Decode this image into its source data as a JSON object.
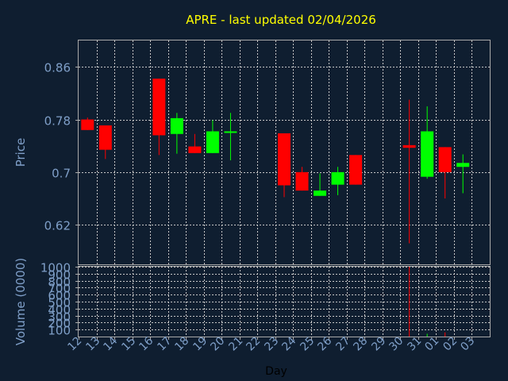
{
  "chart_data": [
    {
      "type": "candlestick",
      "title": "APRE - last updated 02/04/2026",
      "ylabel": "Price",
      "xlabel": "Day",
      "categories": [
        "12",
        "13",
        "14",
        "15",
        "16",
        "17",
        "18",
        "19",
        "20",
        "21",
        "22",
        "23",
        "24",
        "25",
        "26",
        "27",
        "28",
        "29",
        "30",
        "31",
        "01",
        "02",
        "03"
      ],
      "ylim": [
        0.56,
        0.9
      ],
      "yticks": [
        0.62,
        0.7,
        0.78,
        0.86
      ],
      "yticklabels": [
        "0.62",
        "0.7",
        "0.78",
        "0.86"
      ],
      "grid": true,
      "candles": [
        {
          "x": "12",
          "open": 0.78,
          "close": 0.764,
          "high": 0.783,
          "low": 0.764
        },
        {
          "x": "13",
          "open": 0.771,
          "close": 0.734,
          "high": 0.771,
          "low": 0.72
        },
        {
          "x": "16",
          "open": 0.842,
          "close": 0.756,
          "high": 0.842,
          "low": 0.726
        },
        {
          "x": "17",
          "open": 0.758,
          "close": 0.782,
          "high": 0.79,
          "low": 0.728
        },
        {
          "x": "18",
          "open": 0.739,
          "close": 0.729,
          "high": 0.758,
          "low": 0.729
        },
        {
          "x": "19",
          "open": 0.729,
          "close": 0.762,
          "high": 0.779,
          "low": 0.729
        },
        {
          "x": "20",
          "open": 0.762,
          "close": 0.762,
          "high": 0.79,
          "low": 0.718
        },
        {
          "x": "23",
          "open": 0.759,
          "close": 0.68,
          "high": 0.759,
          "low": 0.662
        },
        {
          "x": "24",
          "open": 0.7,
          "close": 0.672,
          "high": 0.708,
          "low": 0.672
        },
        {
          "x": "25",
          "open": 0.664,
          "close": 0.672,
          "high": 0.698,
          "low": 0.664
        },
        {
          "x": "26",
          "open": 0.681,
          "close": 0.7,
          "high": 0.708,
          "low": 0.665
        },
        {
          "x": "27",
          "open": 0.726,
          "close": 0.681,
          "high": 0.726,
          "low": 0.681
        },
        {
          "x": "30",
          "open": 0.741,
          "close": 0.737,
          "high": 0.81,
          "low": 0.592
        },
        {
          "x": "31",
          "open": 0.693,
          "close": 0.762,
          "high": 0.8,
          "low": 0.69
        },
        {
          "x": "01",
          "open": 0.738,
          "close": 0.7,
          "high": 0.738,
          "low": 0.66
        },
        {
          "x": "02",
          "open": 0.708,
          "close": 0.714,
          "high": 0.727,
          "low": 0.668
        }
      ]
    },
    {
      "type": "bar",
      "ylabel": "Volume (0000)",
      "xlabel": "Day",
      "categories": [
        "12",
        "13",
        "14",
        "15",
        "16",
        "17",
        "18",
        "19",
        "20",
        "21",
        "22",
        "23",
        "24",
        "25",
        "26",
        "27",
        "28",
        "29",
        "30",
        "31",
        "01",
        "02",
        "03"
      ],
      "ylim": [
        0,
        1000
      ],
      "yticks": [
        100,
        200,
        300,
        400,
        500,
        600,
        700,
        800,
        900,
        1000
      ],
      "yticklabels": [
        "100",
        "200",
        "300",
        "400",
        "500",
        "600",
        "700",
        "800",
        "900",
        "1000"
      ],
      "grid": true,
      "bars": [
        {
          "x": "30",
          "value": 1000,
          "direction": "down"
        },
        {
          "x": "31",
          "value": 40,
          "direction": "up"
        },
        {
          "x": "01",
          "value": 60,
          "direction": "down"
        }
      ]
    }
  ],
  "colors": {
    "background": "#0f1e30",
    "title": "#ffff00",
    "axis_text": "#7f9fc8",
    "frame": "#a9a9a9",
    "grid": "#c8c8c8",
    "up": "#00ff00",
    "down": "#ff0000"
  }
}
